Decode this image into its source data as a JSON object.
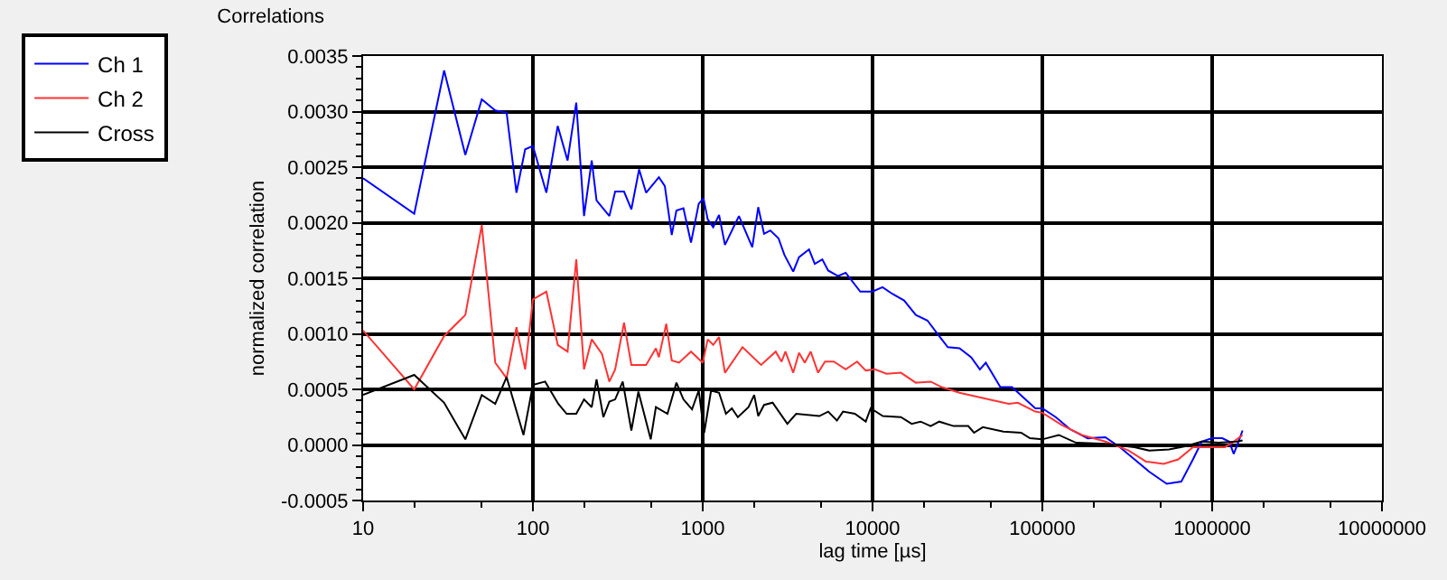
{
  "chart_data": {
    "type": "line",
    "title": "Correlations",
    "xlabel": "lag time [µs]",
    "ylabel": "normalized correlation",
    "log": "x",
    "grid": true,
    "legend": "top left",
    "marker": "none",
    "line_style": "solid",
    "xlim": [
      10,
      10000000
    ],
    "xticks": [
      10,
      100,
      1000,
      10000,
      100000,
      1000000,
      10000000
    ],
    "ylim": [
      -0.0005,
      0.0035
    ],
    "yticks": [
      {
        "value": -0.0005,
        "label": "-0.0005"
      },
      {
        "value": 0,
        "label": "0.0000"
      },
      {
        "value": 0.0005,
        "label": "0.0005"
      },
      {
        "value": 0.001,
        "label": "0.0010"
      },
      {
        "value": 0.0015,
        "label": "0.0015"
      },
      {
        "value": 0.002,
        "label": "0.0020"
      },
      {
        "value": 0.0025,
        "label": "0.0025"
      },
      {
        "value": 0.003,
        "label": "0.0030"
      },
      {
        "value": 0.0035,
        "label": "0.0035"
      }
    ],
    "series": [
      {
        "name": "Ch 1",
        "color": "#0000ff",
        "x": [
          10,
          20,
          30,
          40,
          50,
          60,
          70,
          80,
          90,
          100,
          120,
          140,
          160,
          180,
          200,
          222,
          237,
          282,
          305,
          344,
          380,
          422,
          464,
          552,
          598,
          657,
          700,
          770,
          853,
          947,
          1010,
          1070,
          1153,
          1248,
          1352,
          1634,
          1958,
          2123,
          2297,
          2500,
          2793,
          3027,
          3411,
          3690,
          4227,
          4570,
          5060,
          5480,
          6270,
          6950,
          8470,
          10000,
          11450,
          13070,
          15340,
          17990,
          21040,
          24660,
          27750,
          32520,
          38080,
          42860,
          46450,
          56600,
          66300,
          90900,
          100000,
          120000,
          146000,
          185000,
          235000,
          286000,
          349000,
          425000,
          540000,
          658000,
          771000,
          868000,
          1000000,
          1146000,
          1260000,
          1340000,
          1430000,
          1510000
        ],
        "values": [
          0.0024,
          0.00208,
          0.00337,
          0.00261,
          0.00311,
          0.00301,
          0.00299,
          0.00227,
          0.00266,
          0.00269,
          0.00227,
          0.00287,
          0.00256,
          0.00308,
          0.00206,
          0.00256,
          0.0022,
          0.00206,
          0.00228,
          0.00228,
          0.00212,
          0.00248,
          0.00227,
          0.00241,
          0.00233,
          0.00189,
          0.00211,
          0.00213,
          0.00182,
          0.00217,
          0.00222,
          0.00203,
          0.00196,
          0.00207,
          0.0018,
          0.00206,
          0.00178,
          0.00214,
          0.0019,
          0.00193,
          0.00186,
          0.00171,
          0.00156,
          0.00169,
          0.00176,
          0.00163,
          0.00167,
          0.00157,
          0.00152,
          0.00155,
          0.00138,
          0.00138,
          0.00142,
          0.00136,
          0.0013,
          0.00117,
          0.00112,
          0.00098,
          0.00088,
          0.00087,
          0.00079,
          0.00068,
          0.00074,
          0.00052,
          0.00052,
          0.00033,
          0.00033,
          0.00025,
          0.00014,
          6e-05,
          7e-05,
          -2e-05,
          -0.00013,
          -0.00024,
          -0.00035,
          -0.00033,
          -0.00013,
          3e-05,
          6e-05,
          6e-05,
          3e-05,
          -8e-05,
          3e-05,
          0.00013
        ]
      },
      {
        "name": "Ch 2",
        "color": "#ff3333",
        "x": [
          10,
          20,
          30,
          40,
          50,
          60,
          70,
          80,
          90,
          100,
          120,
          140,
          160,
          180,
          200,
          222,
          255,
          282,
          305,
          344,
          380,
          464,
          530,
          552,
          610,
          657,
          725,
          853,
          1000,
          1070,
          1153,
          1248,
          1352,
          1715,
          2207,
          2690,
          2910,
          3070,
          3411,
          3690,
          3990,
          4320,
          4780,
          5250,
          5910,
          6950,
          8110,
          9120,
          10300,
          12100,
          14700,
          17990,
          22000,
          25600,
          32500,
          48200,
          63400,
          71800,
          90900,
          100000,
          130000,
          171000,
          235000,
          322000,
          408000,
          518000,
          631000,
          771000,
          1000000,
          1190000,
          1340000,
          1510000
        ],
        "values": [
          0.00103,
          0.0005,
          0.00098,
          0.00117,
          0.00198,
          0.00074,
          0.0006,
          0.00106,
          0.00068,
          0.00131,
          0.00138,
          0.0009,
          0.00084,
          0.00167,
          0.00068,
          0.00095,
          0.00082,
          0.00057,
          0.00068,
          0.0011,
          0.00072,
          0.00072,
          0.00087,
          0.00079,
          0.00109,
          0.00076,
          0.00074,
          0.00084,
          0.00074,
          0.00095,
          0.0009,
          0.00097,
          0.00065,
          0.00088,
          0.00072,
          0.00084,
          0.00075,
          0.00084,
          0.00065,
          0.00083,
          0.00074,
          0.00084,
          0.00065,
          0.00075,
          0.00075,
          0.00068,
          0.00075,
          0.00067,
          0.00068,
          0.00064,
          0.00065,
          0.00056,
          0.00057,
          0.00052,
          0.00047,
          0.00041,
          0.00037,
          0.00038,
          0.0003,
          0.00029,
          0.00018,
          9e-05,
          3e-05,
          -5e-05,
          -0.00015,
          -0.00017,
          -0.00013,
          -2e-05,
          -2e-05,
          -2e-05,
          3e-05,
          9e-05
        ]
      },
      {
        "name": "Cross",
        "color": "#000000",
        "x": [
          10,
          20,
          30,
          40,
          50,
          60,
          70,
          88,
          100,
          118,
          141,
          158,
          180,
          200,
          222,
          237,
          260,
          282,
          305,
          338,
          380,
          418,
          494,
          530,
          620,
          700,
          770,
          865,
          947,
          1020,
          1120,
          1248,
          1370,
          1485,
          1610,
          1860,
          2010,
          2123,
          2297,
          2580,
          3150,
          3550,
          4860,
          5480,
          6170,
          6700,
          7870,
          9120,
          9750,
          11500,
          14700,
          17000,
          19200,
          22000,
          24700,
          30000,
          36600,
          39600,
          44600,
          59000,
          75000,
          84500,
          100000,
          125000,
          158000,
          235000,
          349000,
          425000,
          557000,
          704000,
          868000,
          1090000,
          1400000,
          1510000
        ],
        "values": [
          0.00045,
          0.00063,
          0.00038,
          5e-05,
          0.00045,
          0.00037,
          0.00061,
          9e-05,
          0.00054,
          0.00057,
          0.00037,
          0.00028,
          0.00028,
          0.00041,
          0.00034,
          0.00059,
          0.00025,
          0.00039,
          0.00041,
          0.00057,
          0.00013,
          0.00048,
          5e-05,
          0.00034,
          0.00028,
          0.00056,
          0.00041,
          0.00032,
          0.00049,
          0.00011,
          0.00049,
          0.00047,
          0.00028,
          0.00033,
          0.00025,
          0.00034,
          0.00045,
          0.00026,
          0.00036,
          0.00038,
          0.00019,
          0.00028,
          0.00026,
          0.0003,
          0.00022,
          0.0003,
          0.00028,
          0.00021,
          0.00033,
          0.00026,
          0.00025,
          0.00019,
          0.00021,
          0.00017,
          0.00021,
          0.00017,
          0.00017,
          0.00011,
          0.00016,
          0.00012,
          0.00011,
          6e-05,
          5e-05,
          9e-05,
          2e-05,
          1e-05,
          -2e-05,
          -5e-05,
          -4e-05,
          -1e-05,
          3e-05,
          2e-05,
          3e-05,
          4e-05
        ]
      }
    ]
  }
}
